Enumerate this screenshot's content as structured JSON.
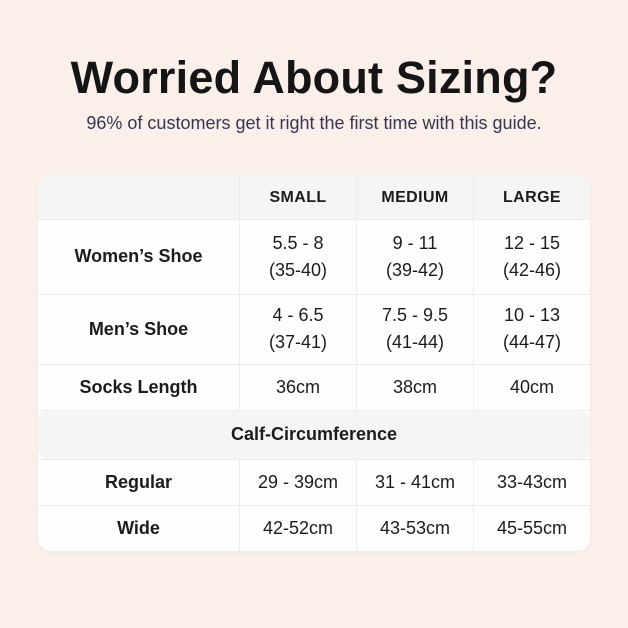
{
  "page": {
    "title": "Worried About Sizing?",
    "subtitle": "96% of customers get it right the first time with this guide."
  },
  "colors": {
    "background": "#fbefe9",
    "table_bg": "#fefefe",
    "band_bg": "#f5f5f4",
    "divider": "#ececea",
    "title_text": "#151515",
    "subtitle_text": "#343652",
    "cell_text": "#1c1c1c"
  },
  "table": {
    "columns": [
      "",
      "SMALL",
      "MEDIUM",
      "LARGE"
    ],
    "rows": [
      {
        "label": "Women’s Shoe",
        "cells": [
          {
            "line1": "5.5 - 8",
            "line2": "(35-40)"
          },
          {
            "line1": "9 - 11",
            "line2": "(39-42)"
          },
          {
            "line1": "12 - 15",
            "line2": "(42-46)"
          }
        ]
      },
      {
        "label": "Men’s Shoe",
        "cells": [
          {
            "line1": "4 - 6.5",
            "line2": "(37-41)"
          },
          {
            "line1": "7.5 - 9.5",
            "line2": "(41-44)"
          },
          {
            "line1": "10 - 13",
            "line2": "(44-47)"
          }
        ]
      },
      {
        "label": "Socks Length",
        "cells": [
          {
            "line1": "36cm"
          },
          {
            "line1": "38cm"
          },
          {
            "line1": "40cm"
          }
        ]
      }
    ],
    "section_header": "Calf-Circumference",
    "calf_rows": [
      {
        "label": "Regular",
        "cells": [
          {
            "line1": "29 - 39cm"
          },
          {
            "line1": "31 - 41cm"
          },
          {
            "line1": "33-43cm"
          }
        ]
      },
      {
        "label": "Wide",
        "cells": [
          {
            "line1": "42-52cm"
          },
          {
            "line1": "43-53cm"
          },
          {
            "line1": "45-55cm"
          }
        ]
      }
    ]
  }
}
